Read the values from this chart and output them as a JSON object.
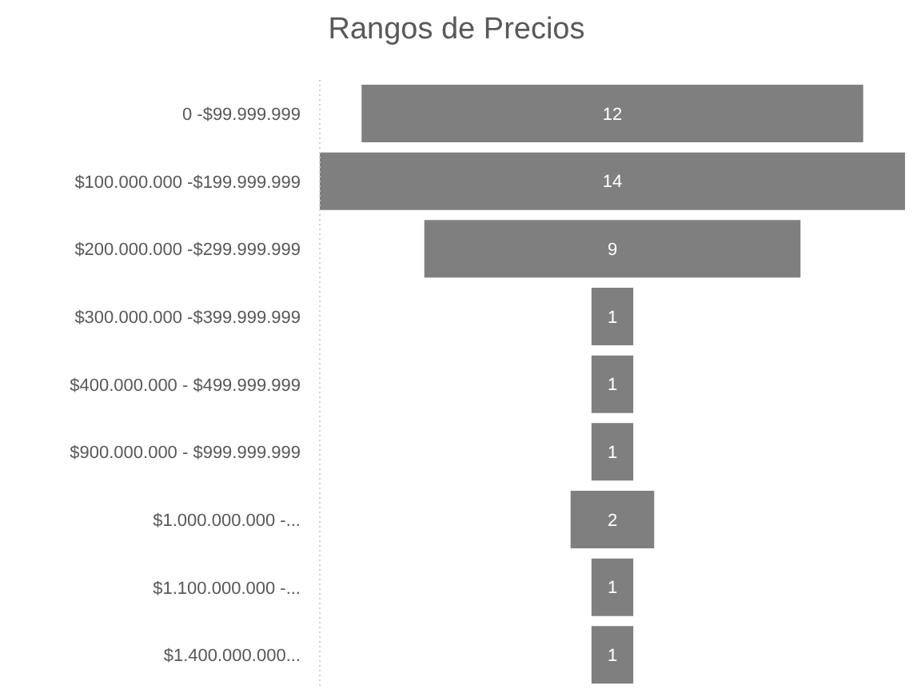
{
  "chart_data": {
    "type": "other",
    "title": "Rangos de Precios",
    "categories": [
      "0 -$99.999.999",
      "$100.000.000 -$199.999.999",
      "$200.000.000 -$299.999.999",
      "$300.000.000 -$399.999.999",
      "$400.000.000 - $499.999.999",
      "$900.000.000 - $999.999.999",
      "$1.000.000.000 -...",
      "$1.100.000.000 -...",
      "$1.400.000.000..."
    ],
    "values": [
      12,
      14,
      9,
      1,
      1,
      1,
      2,
      1,
      1
    ],
    "color": "#7f7f7f",
    "data_labels": true
  }
}
